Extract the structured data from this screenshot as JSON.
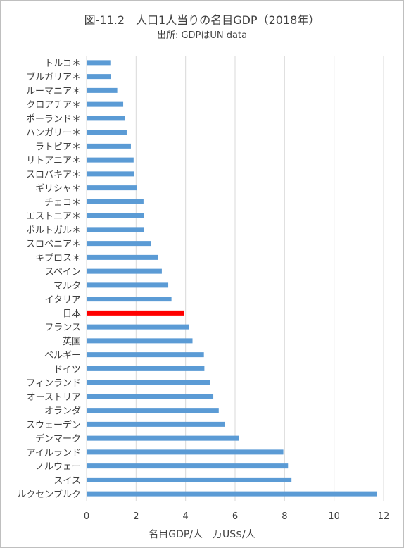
{
  "title": "図-11.2　人口1人当りの名目GDP（2018年）",
  "subtitle": "出所: GDPはUN data",
  "chart_data": {
    "type": "bar",
    "orientation": "horizontal",
    "title": "図-11.2　人口1人当りの名目GDP（2018年）",
    "subtitle": "出所: GDPはUN data",
    "xlabel": "名目GDP/人　万US$/人",
    "ylabel": "",
    "xlim": [
      0,
      12
    ],
    "xticks": [
      0,
      2,
      4,
      6,
      8,
      10,
      12
    ],
    "grid": "vertical",
    "legend": "none",
    "bar_color": "#5b9bd5",
    "highlight_color": "#ff0000",
    "categories": [
      "トルコ＊",
      "ブルガリア＊",
      "ルーマニア＊",
      "クロアチア＊",
      "ポーランド＊",
      "ハンガリー＊",
      "ラトビア＊",
      "リトアニア＊",
      "スロバキア＊",
      "ギリシャ＊",
      "チェコ＊",
      "エストニア＊",
      "ポルトガル＊",
      "スロベニア＊",
      "キプロス＊",
      "スペイン",
      "マルタ",
      "イタリア",
      "日本",
      "フランス",
      "英国",
      "ベルギー",
      "ドイツ",
      "フィンランド",
      "オーストリア",
      "オランダ",
      "スウェーデン",
      "デンマーク",
      "アイルランド",
      "ノルウェー",
      "スイス",
      "ルクセンブルク"
    ],
    "values": [
      0.96,
      0.98,
      1.24,
      1.48,
      1.55,
      1.62,
      1.79,
      1.9,
      1.92,
      2.04,
      2.3,
      2.32,
      2.33,
      2.61,
      2.9,
      3.04,
      3.3,
      3.43,
      3.93,
      4.14,
      4.28,
      4.74,
      4.76,
      5.0,
      5.12,
      5.34,
      5.59,
      6.17,
      7.95,
      8.14,
      8.28,
      11.73
    ],
    "highlight": "日本"
  }
}
